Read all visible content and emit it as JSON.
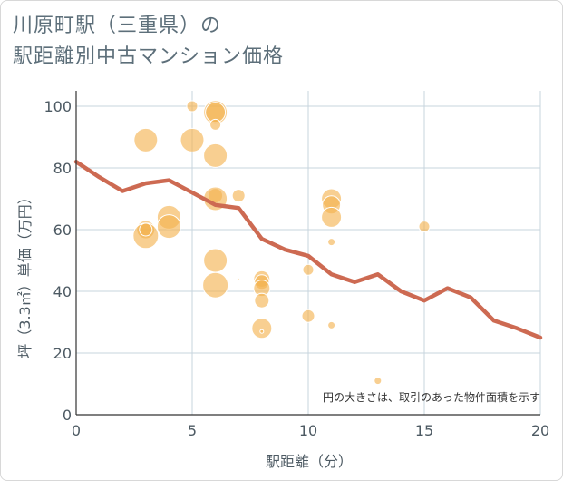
{
  "title_line1": "川原町駅（三重県）の",
  "title_line2": "駅距離別中古マンション価格",
  "chart_data": {
    "type": "scatter",
    "xlabel": "駅距離（分）",
    "ylabel": "坪（3.3㎡）単価（万円）",
    "xlim": [
      0,
      20
    ],
    "ylim": [
      0,
      105
    ],
    "xticks": [
      0,
      5,
      10,
      15,
      20
    ],
    "yticks": [
      0,
      20,
      40,
      60,
      80,
      100
    ],
    "grid": true,
    "note": "円の大きさは、取引のあった物件面積を示す",
    "colors": {
      "bubble": "#f3b24e",
      "line": "#cd6a52",
      "grid": "#c7d4de"
    },
    "bubbles": [
      {
        "x": 3,
        "y": 89,
        "size": 13
      },
      {
        "x": 3,
        "y": 60,
        "size": 10
      },
      {
        "x": 3,
        "y": 58,
        "size": 14
      },
      {
        "x": 3,
        "y": 60,
        "size": 7
      },
      {
        "x": 4,
        "y": 64,
        "size": 13
      },
      {
        "x": 4,
        "y": 61,
        "size": 13
      },
      {
        "x": 5,
        "y": 100,
        "size": 6
      },
      {
        "x": 5,
        "y": 89,
        "size": 13
      },
      {
        "x": 6,
        "y": 98,
        "size": 13
      },
      {
        "x": 6,
        "y": 98,
        "size": 11
      },
      {
        "x": 6,
        "y": 94,
        "size": 6
      },
      {
        "x": 6,
        "y": 84,
        "size": 13
      },
      {
        "x": 6,
        "y": 71,
        "size": 8
      },
      {
        "x": 6,
        "y": 70,
        "size": 13
      },
      {
        "x": 6,
        "y": 50,
        "size": 13
      },
      {
        "x": 6,
        "y": 42,
        "size": 14
      },
      {
        "x": 7,
        "y": 71,
        "size": 7
      },
      {
        "x": 7,
        "y": 44,
        "size": 1
      },
      {
        "x": 8,
        "y": 44,
        "size": 9
      },
      {
        "x": 8,
        "y": 43,
        "size": 8
      },
      {
        "x": 8,
        "y": 41,
        "size": 9
      },
      {
        "x": 8,
        "y": 37,
        "size": 8
      },
      {
        "x": 8,
        "y": 28,
        "size": 11
      },
      {
        "x": 8,
        "y": 27,
        "size": 2
      },
      {
        "x": 10,
        "y": 47,
        "size": 6
      },
      {
        "x": 10,
        "y": 32,
        "size": 7
      },
      {
        "x": 11,
        "y": 70,
        "size": 11
      },
      {
        "x": 11,
        "y": 68,
        "size": 10
      },
      {
        "x": 11,
        "y": 64,
        "size": 11
      },
      {
        "x": 11,
        "y": 56,
        "size": 4
      },
      {
        "x": 11,
        "y": 29,
        "size": 4
      },
      {
        "x": 13,
        "y": 11,
        "size": 4
      },
      {
        "x": 15,
        "y": 61,
        "size": 6
      }
    ],
    "trend": {
      "x": [
        0,
        1,
        2,
        3,
        4,
        5,
        6,
        7,
        8,
        9,
        10,
        11,
        12,
        13,
        14,
        15,
        16,
        17,
        18,
        19,
        20
      ],
      "y": [
        82,
        77,
        72.5,
        75,
        76,
        72,
        68,
        67,
        57,
        53.5,
        51.5,
        45.5,
        43,
        45.5,
        40,
        37,
        41,
        38,
        30.5,
        28,
        25
      ]
    }
  }
}
